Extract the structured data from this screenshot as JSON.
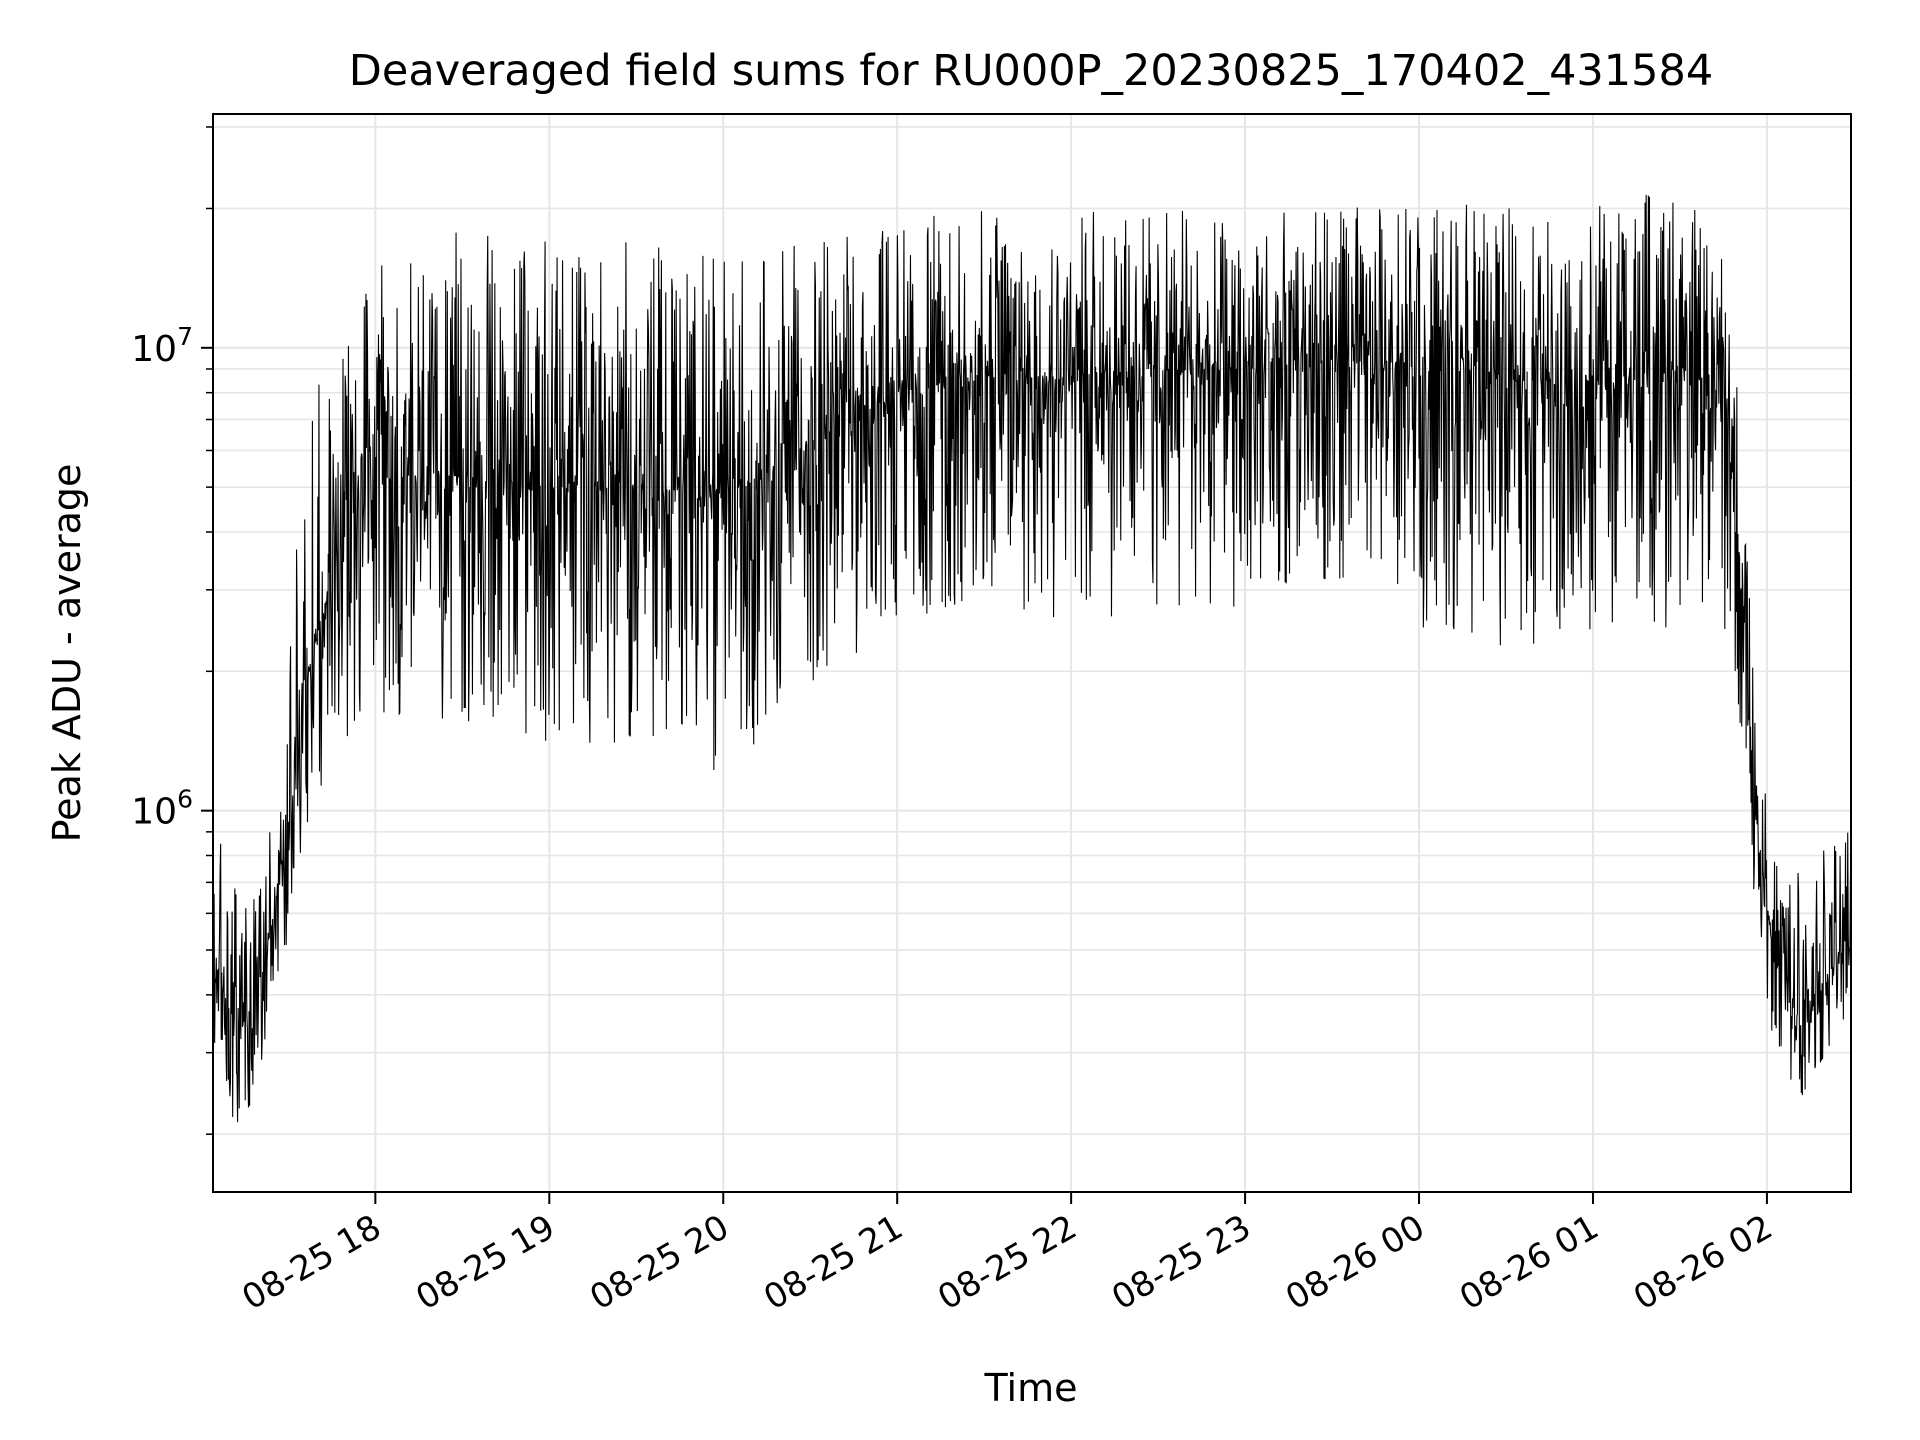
{
  "chart_data": {
    "type": "line",
    "title": "Deaveraged field sums for RU000P_20230825_170402_431584",
    "xlabel": "Time",
    "ylabel": "Peak ADU - average",
    "xlim": [
      "2023-08-25 17:04",
      "2023-08-26 02:29"
    ],
    "ylim": [
      150000,
      32000000
    ],
    "yscale": "log",
    "grid": true,
    "line_color": "#000000",
    "grid_color": "#e6e6e6",
    "x_ticks": [
      {
        "t": "2023-08-25 18:00",
        "label": "08-25 18"
      },
      {
        "t": "2023-08-25 19:00",
        "label": "08-25 19"
      },
      {
        "t": "2023-08-25 20:00",
        "label": "08-25 20"
      },
      {
        "t": "2023-08-25 21:00",
        "label": "08-25 21"
      },
      {
        "t": "2023-08-25 22:00",
        "label": "08-25 22"
      },
      {
        "t": "2023-08-25 23:00",
        "label": "08-25 23"
      },
      {
        "t": "2023-08-26 00:00",
        "label": "08-26 00"
      },
      {
        "t": "2023-08-26 01:00",
        "label": "08-26 01"
      },
      {
        "t": "2023-08-26 02:00",
        "label": "08-26 02"
      }
    ],
    "y_ticks": [
      {
        "value": 1000000,
        "base": "10",
        "exp": "6"
      },
      {
        "value": 10000000,
        "base": "10",
        "exp": "7"
      }
    ],
    "envelope": [
      {
        "t": "2023-08-25 17:04",
        "median": 500000,
        "low": 320000,
        "high": 1000000
      },
      {
        "t": "2023-08-25 17:12",
        "median": 330000,
        "low": 200000,
        "high": 700000
      },
      {
        "t": "2023-08-25 17:20",
        "median": 420000,
        "low": 250000,
        "high": 750000
      },
      {
        "t": "2023-08-25 17:28",
        "median": 750000,
        "low": 450000,
        "high": 1200000
      },
      {
        "t": "2023-08-25 17:36",
        "median": 1900000,
        "low": 900000,
        "high": 8000000
      },
      {
        "t": "2023-08-25 17:44",
        "median": 3000000,
        "low": 1100000,
        "high": 9000000
      },
      {
        "t": "2023-08-25 17:52",
        "median": 4300000,
        "low": 1400000,
        "high": 13000000
      },
      {
        "t": "2023-08-25 18:00",
        "median": 5200000,
        "low": 1600000,
        "high": 15000000
      },
      {
        "t": "2023-08-25 18:30",
        "median": 5300000,
        "low": 1500000,
        "high": 18000000
      },
      {
        "t": "2023-08-25 19:00",
        "median": 5000000,
        "low": 1400000,
        "high": 17000000
      },
      {
        "t": "2023-08-25 19:30",
        "median": 5000000,
        "low": 1400000,
        "high": 17000000
      },
      {
        "t": "2023-08-25 20:00",
        "median": 4700000,
        "low": 1200000,
        "high": 16000000
      },
      {
        "t": "2023-08-25 20:30",
        "median": 6200000,
        "low": 1800000,
        "high": 17000000
      },
      {
        "t": "2023-08-25 21:00",
        "median": 8000000,
        "low": 2500000,
        "high": 19000000
      },
      {
        "t": "2023-08-25 21:30",
        "median": 8700000,
        "low": 2800000,
        "high": 20000000
      },
      {
        "t": "2023-08-25 22:00",
        "median": 8700000,
        "low": 2500000,
        "high": 20000000
      },
      {
        "t": "2023-08-25 22:30",
        "median": 9000000,
        "low": 2500000,
        "high": 20000000
      },
      {
        "t": "2023-08-25 23:00",
        "median": 9000000,
        "low": 2800000,
        "high": 20000000
      },
      {
        "t": "2023-08-25 23:30",
        "median": 9300000,
        "low": 3000000,
        "high": 20000000
      },
      {
        "t": "2023-08-26 00:00",
        "median": 9300000,
        "low": 2500000,
        "high": 21000000
      },
      {
        "t": "2023-08-26 00:30",
        "median": 8500000,
        "low": 2200000,
        "high": 20000000
      },
      {
        "t": "2023-08-26 01:00",
        "median": 8500000,
        "low": 2400000,
        "high": 21000000
      },
      {
        "t": "2023-08-26 01:30",
        "median": 9000000,
        "low": 2500000,
        "high": 22000000
      },
      {
        "t": "2023-08-26 01:45",
        "median": 8000000,
        "low": 2500000,
        "high": 17000000
      },
      {
        "t": "2023-08-26 01:51",
        "median": 3500000,
        "low": 1200000,
        "high": 7000000
      },
      {
        "t": "2023-08-26 01:56",
        "median": 1000000,
        "low": 600000,
        "high": 2000000
      },
      {
        "t": "2023-08-26 02:02",
        "median": 500000,
        "low": 320000,
        "high": 800000
      },
      {
        "t": "2023-08-26 02:12",
        "median": 330000,
        "low": 230000,
        "high": 750000
      },
      {
        "t": "2023-08-26 02:20",
        "median": 420000,
        "low": 280000,
        "high": 900000
      },
      {
        "t": "2023-08-26 02:29",
        "median": 580000,
        "low": 350000,
        "high": 1000000
      }
    ]
  }
}
